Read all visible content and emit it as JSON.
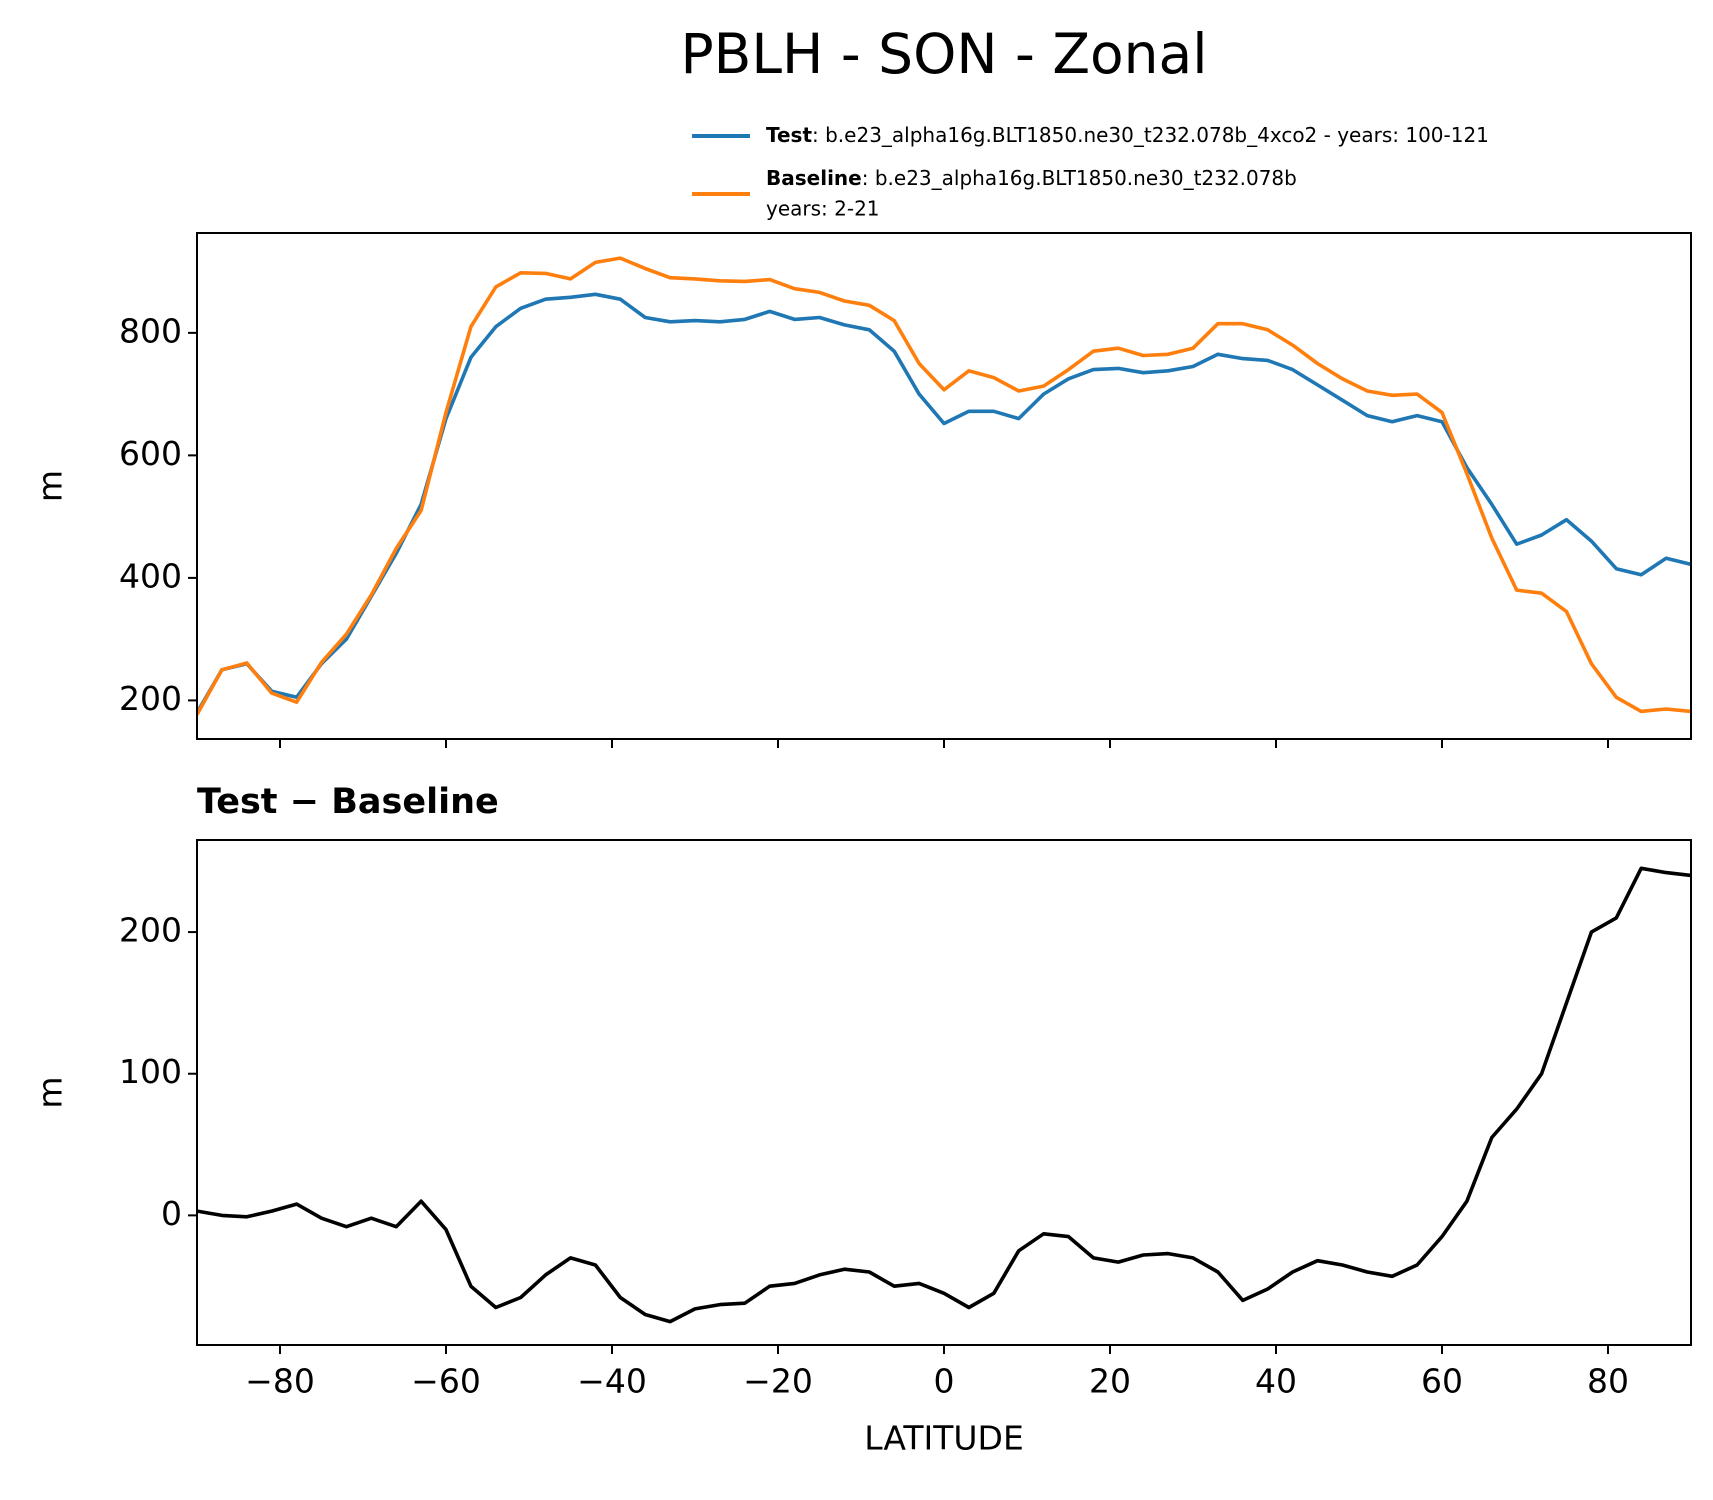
{
  "chart_data": [
    {
      "type": "line",
      "title": "PBLH - SON - Zonal",
      "ylabel": "m",
      "x": [
        -90,
        -87,
        -84,
        -81,
        -78,
        -75,
        -72,
        -69,
        -66,
        -63,
        -60,
        -57,
        -54,
        -51,
        -48,
        -45,
        -42,
        -39,
        -36,
        -33,
        -30,
        -27,
        -24,
        -21,
        -18,
        -15,
        -12,
        -9,
        -6,
        -3,
        0,
        3,
        6,
        9,
        12,
        15,
        18,
        21,
        24,
        27,
        30,
        33,
        36,
        39,
        42,
        45,
        48,
        51,
        54,
        57,
        60,
        63,
        66,
        69,
        72,
        75,
        78,
        81,
        84,
        87,
        90
      ],
      "series": [
        {
          "name": "Test",
          "detail": ": b.e23_alpha16g.BLT1850.ne30_t232.078b_4xco2 - years: 100-121",
          "color": "#1f77b4",
          "values": [
            180,
            250,
            260,
            215,
            205,
            260,
            300,
            370,
            440,
            520,
            660,
            760,
            810,
            840,
            855,
            858,
            863,
            855,
            825,
            818,
            820,
            818,
            822,
            835,
            822,
            825,
            813,
            805,
            770,
            700,
            652,
            672,
            672,
            660,
            700,
            725,
            740,
            742,
            735,
            738,
            745,
            765,
            758,
            755,
            740,
            715,
            690,
            665,
            655,
            665,
            655,
            580,
            520,
            455,
            470,
            495,
            460,
            415,
            405,
            432,
            422
          ]
        },
        {
          "name": "Baseline",
          "detail": ": b.e23_alpha16g.BLT1850.ne30_t232.078b",
          "detail2": "years: 2-21",
          "color": "#ff7f0e",
          "values": [
            177,
            250,
            261,
            212,
            197,
            262,
            308,
            372,
            448,
            510,
            670,
            810,
            875,
            898,
            897,
            888,
            915,
            922,
            905,
            890,
            888,
            885,
            884,
            887,
            872,
            866,
            852,
            845,
            820,
            750,
            707,
            738,
            727,
            705,
            713,
            740,
            770,
            775,
            763,
            765,
            775,
            815,
            815,
            805,
            780,
            750,
            725,
            705,
            698,
            700,
            670,
            570,
            465,
            380,
            375,
            345,
            260,
            205,
            182,
            186,
            182
          ]
        }
      ],
      "xlim": [
        -90,
        90
      ],
      "xticks": [
        -80,
        -60,
        -40,
        -20,
        0,
        20,
        40,
        60,
        80
      ],
      "show_xtick_labels": false,
      "ylim": [
        137,
        963
      ],
      "yticks": [
        200,
        400,
        600,
        800
      ]
    },
    {
      "type": "line",
      "title": "Test − Baseline",
      "ylabel": "m",
      "xlabel": "LATITUDE",
      "x": [
        -90,
        -87,
        -84,
        -81,
        -78,
        -75,
        -72,
        -69,
        -66,
        -63,
        -60,
        -57,
        -54,
        -51,
        -48,
        -45,
        -42,
        -39,
        -36,
        -33,
        -30,
        -27,
        -24,
        -21,
        -18,
        -15,
        -12,
        -9,
        -6,
        -3,
        0,
        3,
        6,
        9,
        12,
        15,
        18,
        21,
        24,
        27,
        30,
        33,
        36,
        39,
        42,
        45,
        48,
        51,
        54,
        57,
        60,
        63,
        66,
        69,
        72,
        75,
        78,
        81,
        84,
        87,
        90
      ],
      "series": [
        {
          "color": "#000000",
          "values": [
            3,
            0,
            -1,
            3,
            8,
            -2,
            -8,
            -2,
            -8,
            10,
            -10,
            -50,
            -65,
            -58,
            -42,
            -30,
            -35,
            -58,
            -70,
            -75,
            -66,
            -63,
            -62,
            -50,
            -48,
            -42,
            -38,
            -40,
            -50,
            -48,
            -55,
            -65,
            -55,
            -25,
            -13,
            -15,
            -30,
            -33,
            -28,
            -27,
            -30,
            -40,
            -60,
            -52,
            -40,
            -32,
            -35,
            -40,
            -43,
            -35,
            -15,
            10,
            55,
            75,
            100,
            150,
            200,
            210,
            245,
            242,
            240
          ]
        }
      ],
      "xlim": [
        -90,
        90
      ],
      "xticks": [
        {
          "value": -80,
          "label": "−80"
        },
        {
          "value": -60,
          "label": "−60"
        },
        {
          "value": -40,
          "label": "−40"
        },
        {
          "value": -20,
          "label": "−20"
        },
        0,
        20,
        40,
        60,
        80
      ],
      "show_xtick_labels": true,
      "ylim": [
        -91.5,
        265
      ],
      "yticks": [
        0,
        100,
        200
      ]
    }
  ]
}
